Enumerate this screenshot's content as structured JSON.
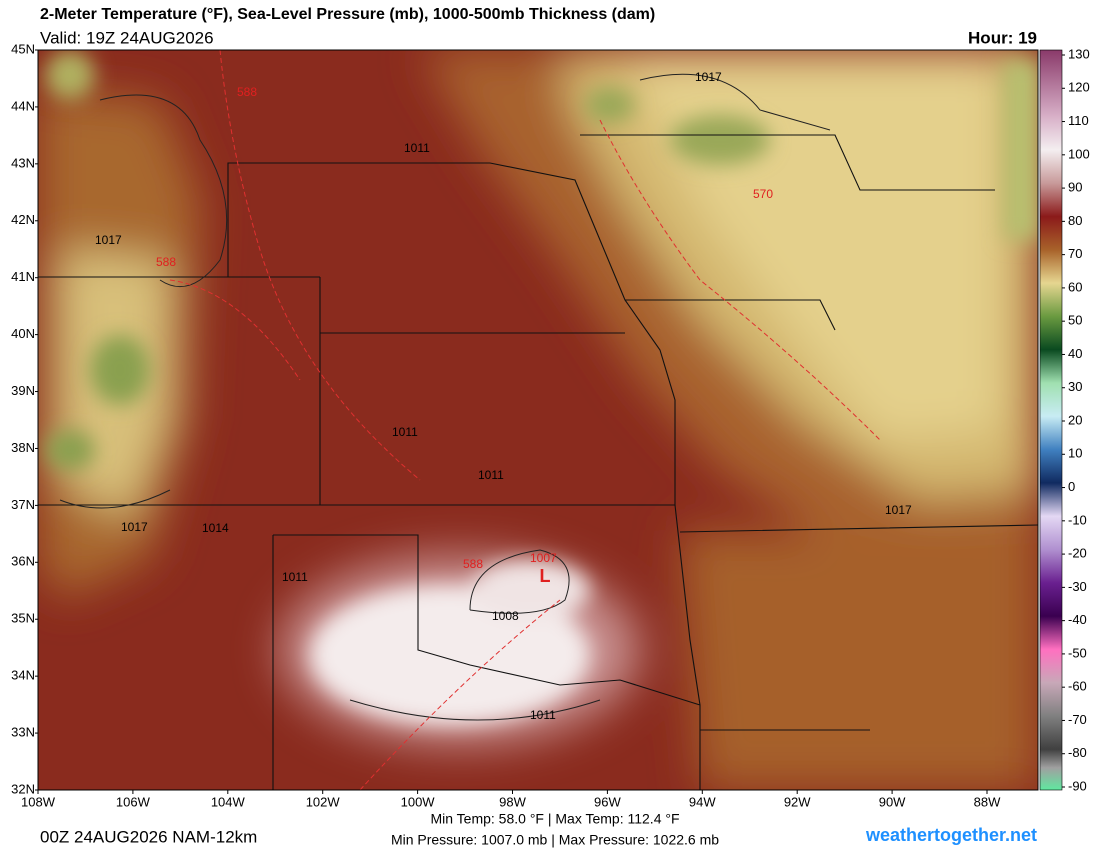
{
  "header": {
    "title": "2-Meter Temperature (°F), Sea-Level Pressure (mb), 1000-500mb Thickness (dam)",
    "valid": "Valid: 19Z 24AUG2026",
    "hour": "Hour: 19"
  },
  "map": {
    "lat_ticks": [
      {
        "value": 45,
        "label": "45N"
      },
      {
        "value": 44,
        "label": "44N"
      },
      {
        "value": 43,
        "label": "43N"
      },
      {
        "value": 42,
        "label": "42N"
      },
      {
        "value": 41,
        "label": "41N"
      },
      {
        "value": 40,
        "label": "40N"
      },
      {
        "value": 39,
        "label": "39N"
      },
      {
        "value": 38,
        "label": "38N"
      },
      {
        "value": 37,
        "label": "37N"
      },
      {
        "value": 36,
        "label": "36N"
      },
      {
        "value": 35,
        "label": "35N"
      },
      {
        "value": 34,
        "label": "34N"
      },
      {
        "value": 33,
        "label": "33N"
      },
      {
        "value": 32,
        "label": "32N"
      }
    ],
    "lon_ticks": [
      {
        "value": -108,
        "label": "108W"
      },
      {
        "value": -106,
        "label": "106W"
      },
      {
        "value": -104,
        "label": "104W"
      },
      {
        "value": -102,
        "label": "102W"
      },
      {
        "value": -100,
        "label": "100W"
      },
      {
        "value": -98,
        "label": "98W"
      },
      {
        "value": -96,
        "label": "96W"
      },
      {
        "value": -94,
        "label": "94W"
      },
      {
        "value": -92,
        "label": "92W"
      },
      {
        "value": -90,
        "label": "90W"
      },
      {
        "value": -88,
        "label": "88W"
      }
    ],
    "contour_labels": [
      "1017",
      "588",
      "1011",
      "570",
      "1017",
      "588",
      "1011",
      "1011",
      "1017",
      "1017",
      "1014",
      "1007",
      "L",
      "588",
      "1011",
      "1008",
      "1011"
    ]
  },
  "colorbar": {
    "ticks": [
      130,
      120,
      110,
      100,
      90,
      80,
      70,
      60,
      50,
      40,
      30,
      20,
      10,
      0,
      -10,
      -20,
      -30,
      -40,
      -50,
      -60,
      -70,
      -80,
      -90
    ]
  },
  "footer": {
    "model": "00Z 24AUG2026 NAM-12km",
    "temp_range": "Min Temp:  58.0 °F | Max Temp: 112.4 °F",
    "pressure_range": "Min Pressure: 1007.0 mb | Max Pressure: 1022.6 mb",
    "site": "weathertogether.net"
  }
}
